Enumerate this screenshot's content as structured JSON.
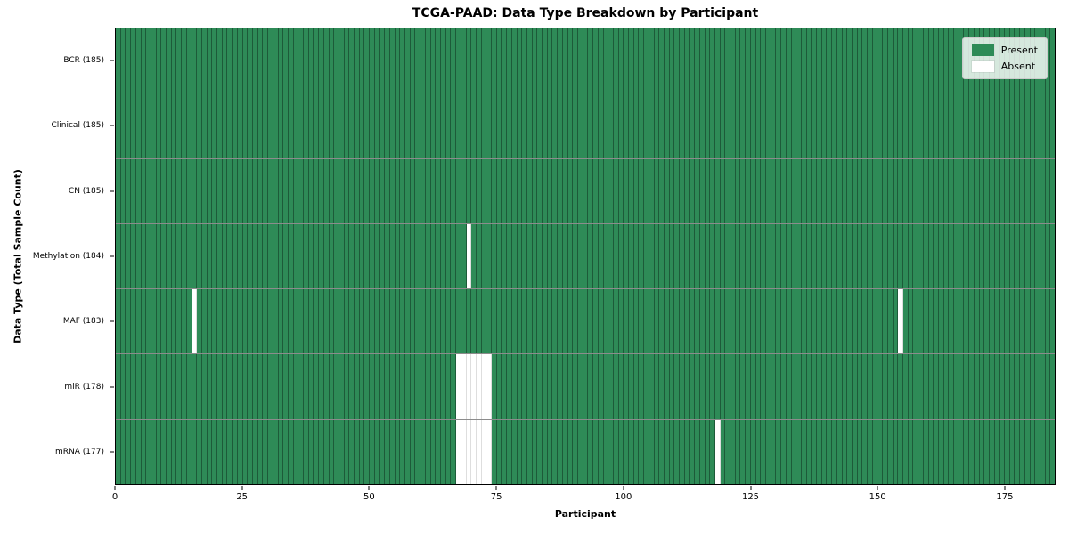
{
  "chart_data": {
    "type": "heatmap",
    "title": "TCGA-PAAD: Data Type Breakdown by Participant",
    "xlabel": "Participant",
    "ylabel": "Data Type (Total Sample Count)",
    "x_ticks": [
      0,
      25,
      50,
      75,
      100,
      125,
      150,
      175
    ],
    "x_range": [
      0,
      185
    ],
    "n_participants": 185,
    "grid": "cell-borders",
    "colors": {
      "present": "#2e8b57",
      "absent": "#ffffff",
      "cell_edge": "rgba(8,26,16,0.42)",
      "row_separator": "rgba(0,0,0,0.45)"
    },
    "legend_position": "upper right",
    "legend": [
      {
        "label": "Present",
        "color": "#2e8b57"
      },
      {
        "label": "Absent",
        "color": "#ffffff"
      }
    ],
    "rows": [
      {
        "label": "BCR (185)",
        "data_type": "BCR",
        "total_samples": 185,
        "absent_participants": []
      },
      {
        "label": "Clinical (185)",
        "data_type": "Clinical",
        "total_samples": 185,
        "absent_participants": []
      },
      {
        "label": "CN (185)",
        "data_type": "CN",
        "total_samples": 185,
        "absent_participants": []
      },
      {
        "label": "Methylation (184)",
        "data_type": "Methylation",
        "total_samples": 184,
        "absent_participants": [
          69
        ]
      },
      {
        "label": "MAF (183)",
        "data_type": "MAF",
        "total_samples": 183,
        "absent_participants": [
          15,
          154
        ]
      },
      {
        "label": "miR (178)",
        "data_type": "miR",
        "total_samples": 178,
        "absent_participants": [
          67,
          68,
          69,
          70,
          71,
          72,
          73
        ]
      },
      {
        "label": "mRNA (177)",
        "data_type": "mRNA",
        "total_samples": 177,
        "absent_participants": [
          67,
          68,
          69,
          70,
          71,
          72,
          73,
          118
        ]
      }
    ]
  }
}
